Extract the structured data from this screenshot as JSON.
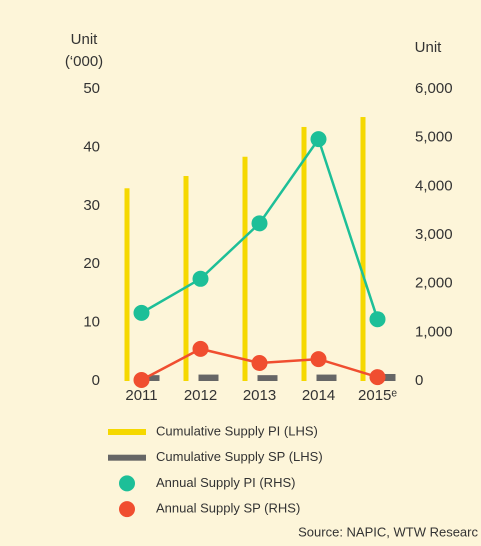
{
  "chart_data": {
    "type": "bar-line",
    "ylabel": [
      "Unit",
      "(‘000)"
    ],
    "y2label": "Unit",
    "categories": [
      "2011",
      "2012",
      "2013",
      "2014",
      "2015ᵉ"
    ],
    "ylim": [
      0,
      50
    ],
    "yticks": [
      0,
      10,
      20,
      30,
      40,
      50
    ],
    "y2lim": [
      0,
      6000
    ],
    "y2ticks": [
      0,
      {
        "value": 1000,
        "label": "1,000"
      },
      {
        "value": 2000,
        "label": "2,000"
      },
      {
        "value": 3000,
        "label": "3,000"
      },
      {
        "value": 4000,
        "label": "4,000"
      },
      {
        "value": 5000,
        "label": "5,000"
      },
      {
        "value": 6000,
        "label": "6,000"
      }
    ],
    "series": [
      {
        "name": "Cumulative Supply PI (LHS)",
        "color": "#f5d800",
        "kind": "bar",
        "values": [
          33,
          35.1,
          38.4,
          43.5,
          45.2
        ]
      },
      {
        "name": "Cumulative Supply SP (LHS)",
        "color": "#666666",
        "kind": "bar",
        "values": [
          1,
          1.1,
          1,
          1.1,
          1.2
        ]
      },
      {
        "name": "Annual Supply PI (RHS)",
        "color": "#1dbf98",
        "kind": "line",
        "axis": "y2",
        "values": [
          1400,
          2100,
          3240,
          4970,
          1270
        ]
      },
      {
        "name": "Annual Supply SP (RHS)",
        "color": "#f04e30",
        "kind": "line",
        "axis": "y2",
        "values": [
          20,
          660,
          370,
          450,
          80
        ]
      }
    ],
    "source": "Source: NAPIC, WTW Researc"
  }
}
